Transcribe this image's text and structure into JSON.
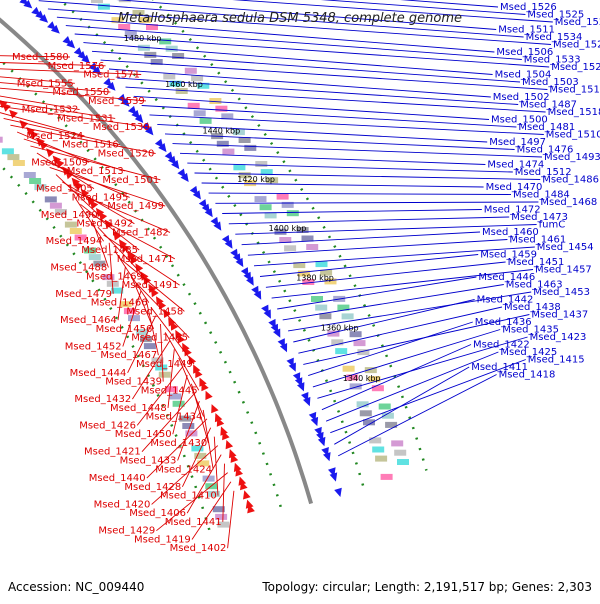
{
  "title": "Metallosphaera sedula DSM 5348, complete genome",
  "footer": {
    "accession": "Accession: NC_009440",
    "topology": "Topology: circular; Length: 2,191,517 bp; Genes: 2,303"
  },
  "colors": {
    "forward_labels": "#0000cc",
    "reverse_labels": "#dd0000",
    "backbone": "#888888",
    "ticks": "#228822"
  },
  "kbp_ticks": [
    {
      "text": "1520 kbp",
      "t": 0.035
    },
    {
      "text": "1500 kbp",
      "t": 0.128
    },
    {
      "text": "1480 kbp",
      "t": 0.222
    },
    {
      "text": "1460 kbp",
      "t": 0.315
    },
    {
      "text": "1440 kbp",
      "t": 0.405
    },
    {
      "text": "1420 kbp",
      "t": 0.495
    },
    {
      "text": "1400 kbp",
      "t": 0.583
    },
    {
      "text": "1380 kbp",
      "t": 0.668
    },
    {
      "text": "1360 kbp",
      "t": 0.752
    },
    {
      "text": "1340 kbp",
      "t": 0.835
    }
  ],
  "labels_blue": [
    "Msed_1526",
    "Msed_1525",
    "Msed_1523",
    "Msed_1511",
    "Msed_1534",
    "Msed_1522",
    "Msed_1506",
    "Msed_1533",
    "Msed_1521",
    "Msed_1504",
    "Msed_1503",
    "Msed_1519",
    "Msed_1502",
    "Msed_1487",
    "Msed_1518",
    "Msed_1500",
    "Msed_1481",
    "Msed_1510",
    "Msed_1497",
    "Msed_1476",
    "Msed_1493",
    "Msed_1474",
    "Msed_1512",
    "Msed_1486",
    "Msed_1470",
    "Msed_1484",
    "Msed_1468",
    "Msed_1472",
    "Msed_1473",
    "fumC",
    "Msed_1460",
    "Msed_1461",
    "Msed_1454",
    "Msed_1459",
    "Msed_1451",
    "Msed_1457",
    "Msed_1446",
    "Msed_1463",
    "Msed_1453",
    "Msed_1442",
    "Msed_1438",
    "Msed_1437",
    "Msed_1436",
    "Msed_1435",
    "Msed_1423",
    "Msed_1422",
    "Msed_1425",
    "Msed_1415",
    "Msed_1411",
    "Msed_1418"
  ],
  "labels_red": [
    "Msed_1580",
    "Msed_1576",
    "Msed_1571",
    "Msed_1555",
    "Msed_1550",
    "Msed_1539",
    "Msed_1532",
    "Msed_1531",
    "Msed_1530",
    "Msed_1524",
    "Msed_1516",
    "Msed_1520",
    "Msed_1509",
    "Msed_1513",
    "Msed_1501",
    "Msed_1505",
    "Msed_1495",
    "Msed_1499",
    "Msed_1490",
    "Msed_1492",
    "Msed_1482",
    "Msed_1494",
    "Msed_1485",
    "Msed_1471",
    "Msed_1488",
    "Msed_1469",
    "Msed_1491",
    "Msed_1479",
    "Msed_1466",
    "Msed_1458",
    "Msed_1464",
    "Msed_1456",
    "Msed_1465",
    "Msed_1452",
    "Msed_1467",
    "Msed_1449",
    "Msed_1444",
    "Msed_1439",
    "Msed_1445",
    "Msed_1432",
    "Msed_1448",
    "Msed_1434",
    "Msed_1426",
    "Msed_1450",
    "Msed_1430",
    "Msed_1421",
    "Msed_1433",
    "Msed_1424",
    "Msed_1440",
    "Msed_1428",
    "Msed_1410",
    "Msed_1420",
    "Msed_1406",
    "Msed_1441",
    "Msed_1429",
    "Msed_1419",
    "Msed_1402"
  ]
}
